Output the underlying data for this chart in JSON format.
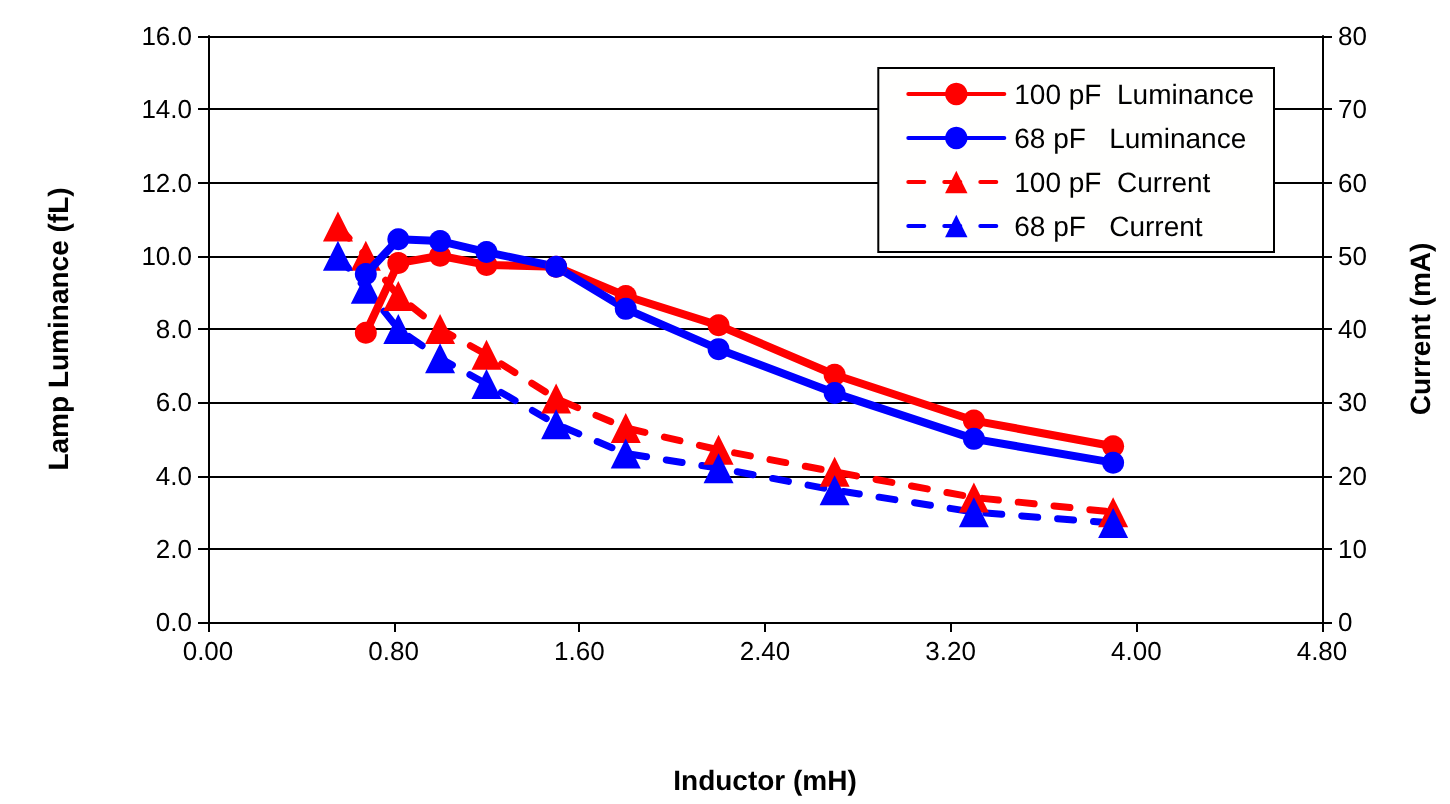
{
  "chart_data": {
    "type": "line",
    "xlabel": "Inductor (mH)",
    "ylabel": "Lamp Luminance (fL)",
    "y2label": "Current (mA)",
    "xlim": [
      0,
      4.8
    ],
    "xticks": [
      {
        "value": 0,
        "label": "0.00"
      },
      {
        "value": 0.8,
        "label": "0.80"
      },
      {
        "value": 1.6,
        "label": "1.60"
      },
      {
        "value": 2.4,
        "label": "2.40"
      },
      {
        "value": 3.2,
        "label": "3.20"
      },
      {
        "value": 4,
        "label": "4.00"
      },
      {
        "value": 4.8,
        "label": "4.80"
      }
    ],
    "ylim": [
      0,
      16
    ],
    "yticks": [
      {
        "value": 0,
        "label": "0.0"
      },
      {
        "value": 2,
        "label": "2.0"
      },
      {
        "value": 4,
        "label": "4.0"
      },
      {
        "value": 6,
        "label": "6.0"
      },
      {
        "value": 8,
        "label": "8.0"
      },
      {
        "value": 10,
        "label": "10.0"
      },
      {
        "value": 12,
        "label": "12.0"
      },
      {
        "value": 14,
        "label": "14.0"
      },
      {
        "value": 16,
        "label": "16.0"
      }
    ],
    "y2lim": [
      0,
      80
    ],
    "y2ticks": [
      0,
      10,
      20,
      30,
      40,
      50,
      60,
      70,
      80
    ],
    "grid": "y",
    "legend": "top right",
    "series": [
      {
        "name": "100 pF  Luminance",
        "color": "#ff0000",
        "marker": "circle",
        "line_style": "solid",
        "x": [
          0.68,
          0.82,
          1.0,
          1.2,
          1.5,
          1.8,
          2.2,
          2.7,
          3.3,
          3.9
        ],
        "values": [
          7.9,
          9.8,
          10.0,
          9.75,
          9.7,
          8.9,
          8.1,
          6.75,
          5.5,
          4.8
        ]
      },
      {
        "name": "68 pF   Luminance",
        "color": "#0000ff",
        "marker": "circle",
        "line_style": "solid",
        "x": [
          0.68,
          0.82,
          1.0,
          1.2,
          1.5,
          1.8,
          2.2,
          2.7,
          3.3,
          3.9
        ],
        "values": [
          9.5,
          10.45,
          10.4,
          10.1,
          9.7,
          8.55,
          7.45,
          6.25,
          5.0,
          4.35
        ]
      },
      {
        "name": "100 pF  Current",
        "color": "#ff0000",
        "marker": "triangle",
        "line_style": "dashed",
        "axis": "y2",
        "x": [
          0.56,
          0.68,
          0.82,
          1.0,
          1.2,
          1.5,
          1.8,
          2.2,
          2.7,
          3.3,
          3.9
        ],
        "values": [
          54,
          50,
          44.5,
          40,
          36.5,
          30.5,
          26.5,
          23.5,
          20.5,
          17,
          15
        ]
      },
      {
        "name": "68 pF   Current",
        "color": "#0000ff",
        "marker": "triangle",
        "line_style": "dashed",
        "axis": "y2",
        "x": [
          0.56,
          0.68,
          0.82,
          1.0,
          1.2,
          1.5,
          1.8,
          2.2,
          2.7,
          3.3,
          3.9
        ],
        "values": [
          50,
          45.5,
          40,
          36,
          32.5,
          27,
          23,
          21,
          18,
          15,
          13.5
        ]
      }
    ]
  }
}
